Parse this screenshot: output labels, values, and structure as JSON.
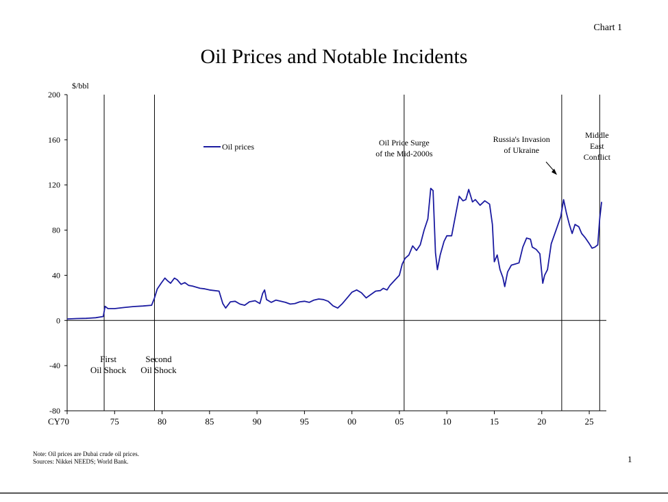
{
  "slide": {
    "chart_number": "Chart 1",
    "page_number": "1",
    "note": "Note: Oil prices are Dubai crude oil prices.",
    "sources": "Sources: Nikkei NEEDS; World Bank."
  },
  "chart_data": {
    "type": "line",
    "title": "Oil Prices and Notable Incidents",
    "ylabel": "$/bbl",
    "xlabel": "",
    "ylim": [
      -80,
      200
    ],
    "xlim": [
      1970,
      2026.8
    ],
    "yticks": [
      200,
      160,
      120,
      80,
      40,
      0,
      -40,
      -80
    ],
    "xticks": [
      {
        "year": 1970,
        "label": "CY70"
      },
      {
        "year": 1975,
        "label": "75"
      },
      {
        "year": 1980,
        "label": "80"
      },
      {
        "year": 1985,
        "label": "85"
      },
      {
        "year": 1990,
        "label": "90"
      },
      {
        "year": 1995,
        "label": "95"
      },
      {
        "year": 2000,
        "label": "00"
      },
      {
        "year": 2005,
        "label": "05"
      },
      {
        "year": 2010,
        "label": "10"
      },
      {
        "year": 2015,
        "label": "15"
      },
      {
        "year": 2020,
        "label": "20"
      },
      {
        "year": 2025,
        "label": "25"
      }
    ],
    "legend": {
      "position": "top-left",
      "label": "Oil prices"
    },
    "series": [
      {
        "name": "Oil prices",
        "color": "#1a1aa0",
        "x": [
          1970.0,
          1971.0,
          1972.0,
          1973.0,
          1973.8,
          1974.0,
          1974.3,
          1975.0,
          1976.0,
          1977.0,
          1978.0,
          1978.9,
          1979.2,
          1979.5,
          1979.9,
          1980.3,
          1980.6,
          1980.9,
          1981.3,
          1981.6,
          1982.0,
          1982.4,
          1982.8,
          1983.2,
          1983.6,
          1984.0,
          1984.5,
          1985.0,
          1985.5,
          1986.0,
          1986.4,
          1986.7,
          1987.2,
          1987.7,
          1988.2,
          1988.7,
          1989.2,
          1989.8,
          1990.3,
          1990.6,
          1990.8,
          1991.0,
          1991.5,
          1992.0,
          1992.5,
          1993.0,
          1993.5,
          1994.0,
          1994.5,
          1995.0,
          1995.5,
          1996.0,
          1996.5,
          1997.0,
          1997.5,
          1998.0,
          1998.5,
          1999.0,
          1999.5,
          2000.0,
          2000.5,
          2001.0,
          2001.5,
          2002.0,
          2002.5,
          2003.0,
          2003.3,
          2003.7,
          2004.0,
          2004.5,
          2005.0,
          2005.3,
          2005.6,
          2006.0,
          2006.4,
          2006.8,
          2007.2,
          2007.6,
          2008.0,
          2008.3,
          2008.55,
          2008.8,
          2009.0,
          2009.3,
          2009.7,
          2010.0,
          2010.5,
          2011.0,
          2011.3,
          2011.7,
          2012.0,
          2012.3,
          2012.7,
          2013.0,
          2013.5,
          2014.0,
          2014.5,
          2014.8,
          2015.0,
          2015.3,
          2015.6,
          2015.9,
          2016.1,
          2016.4,
          2016.8,
          2017.2,
          2017.6,
          2018.0,
          2018.4,
          2018.8,
          2019.0,
          2019.4,
          2019.8,
          2020.1,
          2020.3,
          2020.6,
          2021.0,
          2021.5,
          2022.0,
          2022.3,
          2022.6,
          2022.9,
          2023.2,
          2023.5,
          2023.9,
          2024.2,
          2024.6,
          2025.0,
          2025.3,
          2025.6,
          2025.9,
          2026.1,
          2026.3
        ],
        "values": [
          1.3,
          1.7,
          1.9,
          2.4,
          3.5,
          12.5,
          10.5,
          10.5,
          11.5,
          12.3,
          12.8,
          13.5,
          20.0,
          28.0,
          33.0,
          37.5,
          35.0,
          33.0,
          37.5,
          36.0,
          32.0,
          33.5,
          31.0,
          30.5,
          29.5,
          28.5,
          28.0,
          27.0,
          26.5,
          26.0,
          15.0,
          11.0,
          16.5,
          17.0,
          14.5,
          13.5,
          16.5,
          17.5,
          15.0,
          24.0,
          27.0,
          18.5,
          16.0,
          18.0,
          17.0,
          16.0,
          14.5,
          15.0,
          16.5,
          17.0,
          16.0,
          18.0,
          19.0,
          18.5,
          17.0,
          13.0,
          11.0,
          15.0,
          20.0,
          25.0,
          27.0,
          24.5,
          20.0,
          23.0,
          26.0,
          26.5,
          28.5,
          27.0,
          31.0,
          35.5,
          40.0,
          50.0,
          55.0,
          58.0,
          66.0,
          62.0,
          67.0,
          80.0,
          90.0,
          117.0,
          115.0,
          60.0,
          45.0,
          58.0,
          70.0,
          75.0,
          75.0,
          97.0,
          110.0,
          106.0,
          107.0,
          116.0,
          105.0,
          107.0,
          102.0,
          106.0,
          103.0,
          85.0,
          52.0,
          58.0,
          45.0,
          38.0,
          30.0,
          43.0,
          49.0,
          50.0,
          51.0,
          65.0,
          73.0,
          72.0,
          65.0,
          63.0,
          59.0,
          33.0,
          40.0,
          45.0,
          68.0,
          80.0,
          92.0,
          107.0,
          95.0,
          85.0,
          77.0,
          85.0,
          83.0,
          77.0,
          73.0,
          68.0,
          64.0,
          65.0,
          67.0,
          90.0,
          105.0
        ]
      }
    ],
    "events": [
      {
        "year": 1973.9,
        "label_lines": [
          "First",
          "Oil Shock"
        ],
        "position": "below"
      },
      {
        "year": 1979.2,
        "label_lines": [
          "Second",
          "Oil Shock"
        ],
        "position": "below"
      },
      {
        "year": 2005.5,
        "label_lines": [
          "Oil Price Surge",
          "of the Mid-2000s"
        ],
        "position": "above"
      },
      {
        "year": 2022.1,
        "label_lines": [
          "Russia's Invasion",
          "of Ukraine"
        ],
        "position": "above-left-arrow"
      },
      {
        "year": 2026.1,
        "label_lines": [
          "Middle",
          "East",
          "Conflict"
        ],
        "position": "above"
      }
    ]
  }
}
